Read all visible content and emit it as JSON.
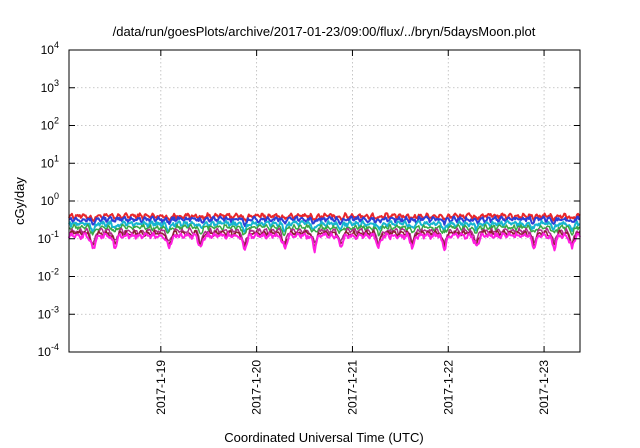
{
  "chart_data": {
    "type": "line",
    "title": "/data/run/goesPlots/archive/2017-01-23/09:00/flux/../bryn/5daysMoon.plot",
    "xlabel": "Coordinated Universal Time (UTC)",
    "ylabel": "cGy/day",
    "yscale": "log",
    "ylim": [
      0.0001,
      10000
    ],
    "y_ticks": [
      {
        "value": 0.0001,
        "base": "10",
        "exp": "-4"
      },
      {
        "value": 0.001,
        "base": "10",
        "exp": "-3"
      },
      {
        "value": 0.01,
        "base": "10",
        "exp": "-2"
      },
      {
        "value": 0.1,
        "base": "10",
        "exp": "-1"
      },
      {
        "value": 1,
        "base": "10",
        "exp": "0"
      },
      {
        "value": 10,
        "base": "10",
        "exp": "1"
      },
      {
        "value": 100,
        "base": "10",
        "exp": "2"
      },
      {
        "value": 1000,
        "base": "10",
        "exp": "3"
      },
      {
        "value": 10000,
        "base": "10",
        "exp": "4"
      }
    ],
    "xlim": [
      "2017-01-18T01:00",
      "2017-01-23T09:00"
    ],
    "x_ticks": [
      "2017-1-19",
      "2017-1-20",
      "2017-1-21",
      "2017-1-22",
      "2017-1-23"
    ],
    "x_tick_values": [
      "2017-01-19T00:00",
      "2017-01-20T00:00",
      "2017-01-21T00:00",
      "2017-01-22T00:00",
      "2017-01-23T00:00"
    ],
    "grid": true,
    "series": [
      {
        "color": "#e8262a",
        "base": 0.4,
        "width": 2
      },
      {
        "color": "#2c3fd6",
        "base": 0.33,
        "width": 2
      },
      {
        "color": "#16b5d0",
        "base": 0.25,
        "width": 2
      },
      {
        "color": "#39a845",
        "base": 0.2,
        "width": 1.5
      },
      {
        "color": "#b02a8c",
        "base": 0.16,
        "width": 1.5
      },
      {
        "color": "#8c1f2e",
        "base": 0.14,
        "width": 1.5
      },
      {
        "color": "#ff1fe0",
        "base": 0.12,
        "width": 2
      }
    ],
    "dips": [
      {
        "t": "2017-01-18T07:00",
        "factor": 0.45
      },
      {
        "t": "2017-01-18T12:30",
        "factor": 0.55
      },
      {
        "t": "2017-01-19T02:00",
        "factor": 0.5
      },
      {
        "t": "2017-01-19T10:00",
        "factor": 0.55
      },
      {
        "t": "2017-01-19T21:00",
        "factor": 0.45
      },
      {
        "t": "2017-01-20T07:00",
        "factor": 0.5
      },
      {
        "t": "2017-01-20T14:30",
        "factor": 0.5
      },
      {
        "t": "2017-01-20T21:00",
        "factor": 0.55
      },
      {
        "t": "2017-01-21T06:30",
        "factor": 0.5
      },
      {
        "t": "2017-01-21T15:00",
        "factor": 0.55
      },
      {
        "t": "2017-01-21T23:00",
        "factor": 0.5
      },
      {
        "t": "2017-01-22T07:00",
        "factor": 0.55
      },
      {
        "t": "2017-01-22T21:30",
        "factor": 0.55
      },
      {
        "t": "2017-01-23T02:30",
        "factor": 0.5
      },
      {
        "t": "2017-01-23T07:00",
        "factor": 0.5
      }
    ]
  }
}
